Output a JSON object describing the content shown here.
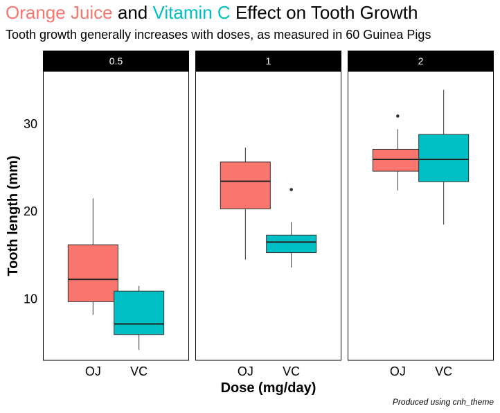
{
  "title": {
    "part1": "Orange Juice",
    "part2": " and ",
    "part3": "Vitamin C",
    "part4": " Effect on Tooth Growth"
  },
  "subtitle": "Tooth growth generally increases with doses, as measured in 60 Guinea Pigs",
  "caption": "Produced using cnh_theme",
  "colors": {
    "oj": "#F8766D",
    "vc": "#00BFC4"
  },
  "chart_data": {
    "type": "box",
    "xlabel": "Dose (mg/day)",
    "ylabel": "Tooth length (mm)",
    "ylim": [
      3,
      36
    ],
    "yticks": [
      10,
      20,
      30
    ],
    "categories": [
      "OJ",
      "VC"
    ],
    "grid": false,
    "legend": "none",
    "panels": [
      {
        "label": "0.5",
        "boxes": [
          {
            "category": "OJ",
            "min": 8.2,
            "q1": 9.7,
            "median": 12.25,
            "q3": 16.2,
            "max": 21.5,
            "outliers": []
          },
          {
            "category": "VC",
            "min": 4.2,
            "q1": 5.95,
            "median": 7.15,
            "q3": 10.9,
            "max": 11.5,
            "outliers": []
          }
        ]
      },
      {
        "label": "1",
        "boxes": [
          {
            "category": "OJ",
            "min": 14.5,
            "q1": 20.3,
            "median": 23.45,
            "q3": 25.65,
            "max": 27.3,
            "outliers": []
          },
          {
            "category": "VC",
            "min": 13.6,
            "q1": 15.3,
            "median": 16.5,
            "q3": 17.3,
            "max": 18.8,
            "outliers": [
              22.5
            ]
          }
        ]
      },
      {
        "label": "2",
        "boxes": [
          {
            "category": "OJ",
            "min": 22.4,
            "q1": 24.6,
            "median": 25.95,
            "q3": 27.1,
            "max": 29.4,
            "outliers": [
              30.9
            ]
          },
          {
            "category": "VC",
            "min": 18.5,
            "q1": 23.4,
            "median": 25.95,
            "q3": 28.8,
            "max": 33.9,
            "outliers": []
          }
        ]
      }
    ]
  }
}
